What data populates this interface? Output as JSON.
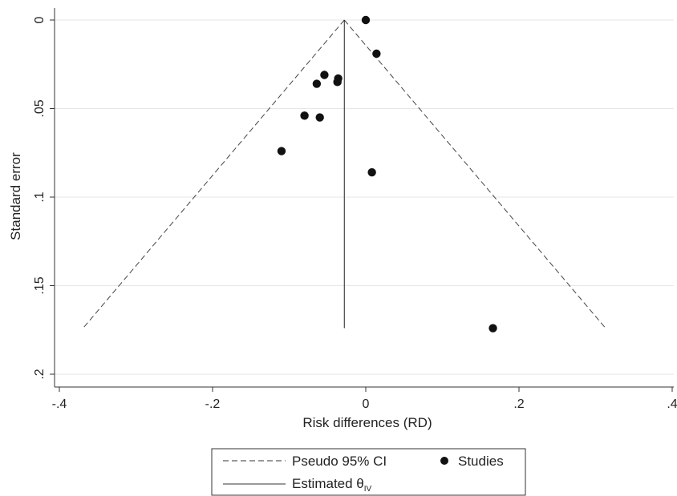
{
  "chart_data": {
    "type": "scatter",
    "title": "",
    "xlabel": "Risk differences (RD)",
    "ylabel": "Standard error",
    "xlim": [
      -0.4,
      0.4
    ],
    "ylim": [
      0,
      0.2
    ],
    "y_inverted": true,
    "xticks": [
      -0.4,
      -0.2,
      0,
      0.2,
      0.4
    ],
    "xtick_labels": [
      "-.4",
      "-.2",
      "0",
      ".2",
      ".4"
    ],
    "yticks": [
      0,
      0.05,
      0.1,
      0.15,
      0.2
    ],
    "ytick_labels": [
      "0",
      ".05",
      ".1",
      ".15",
      ".2"
    ],
    "grid": true,
    "legend_position": "bottom",
    "estimate": -0.028,
    "ci_max_se": 0.174,
    "series": [
      {
        "name": "Studies",
        "x": [
          0.0,
          0.014,
          -0.054,
          -0.064,
          -0.036,
          -0.037,
          -0.08,
          -0.06,
          -0.11,
          0.008,
          0.166
        ],
        "y": [
          0.0,
          0.019,
          0.031,
          0.036,
          0.033,
          0.035,
          0.054,
          0.055,
          0.074,
          0.086,
          0.174
        ]
      }
    ],
    "legend": {
      "ci_label": "Pseudo 95% CI",
      "studies_label": "Studies",
      "estimate_label": "Estimated θ",
      "estimate_subscript": "IV"
    }
  }
}
